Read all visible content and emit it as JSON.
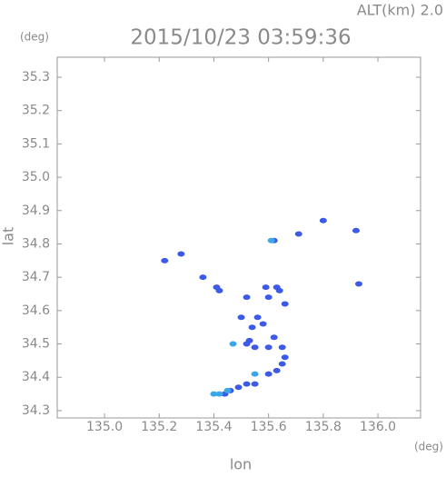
{
  "chart_data": {
    "type": "scatter",
    "title": "2015/10/23 03:59:36",
    "subtitle": "ALT(km) 2.0",
    "x_label": "lon",
    "x_unit": "(deg)",
    "y_label": "lat",
    "y_unit": "(deg)",
    "xlim": [
      134.827,
      136.156
    ],
    "ylim": [
      34.278,
      35.36
    ],
    "xticks": [
      {
        "value": 135.0,
        "label": "135.0"
      },
      135.2,
      135.4,
      135.6,
      135.8,
      {
        "value": 136.0,
        "label": "136.0"
      }
    ],
    "yticks": [
      34.3,
      34.4,
      34.5,
      34.6,
      34.7,
      34.8,
      34.9,
      {
        "value": 35.0,
        "label": "35.0"
      },
      35.1,
      35.2,
      35.3
    ],
    "series": [
      {
        "color": "#3d5ae6",
        "x": [
          135.22,
          135.28,
          135.36,
          135.41,
          135.42,
          135.52,
          135.5,
          135.56,
          135.58,
          135.54,
          135.53,
          135.55,
          135.52,
          135.6,
          135.62,
          135.65,
          135.66,
          135.65,
          135.63,
          135.6,
          135.55,
          135.52,
          135.49,
          135.46,
          135.44,
          135.59,
          135.63,
          135.66,
          135.64,
          135.62,
          135.71,
          135.92,
          135.93,
          135.8,
          135.6
        ],
        "values": [
          34.75,
          34.77,
          34.7,
          34.67,
          34.66,
          34.64,
          34.58,
          34.58,
          34.56,
          34.55,
          34.51,
          34.49,
          34.5,
          34.49,
          34.52,
          34.49,
          34.46,
          34.44,
          34.42,
          34.41,
          34.38,
          34.38,
          34.37,
          34.36,
          34.35,
          34.67,
          34.67,
          34.62,
          34.66,
          34.81,
          34.83,
          34.84,
          34.68,
          34.87,
          34.64
        ]
      },
      {
        "color": "#3aa8e8",
        "x": [
          135.42,
          135.4,
          135.45,
          135.55,
          135.47,
          135.61
        ],
        "values": [
          34.35,
          34.35,
          34.36,
          34.41,
          34.5,
          34.81
        ]
      }
    ]
  }
}
